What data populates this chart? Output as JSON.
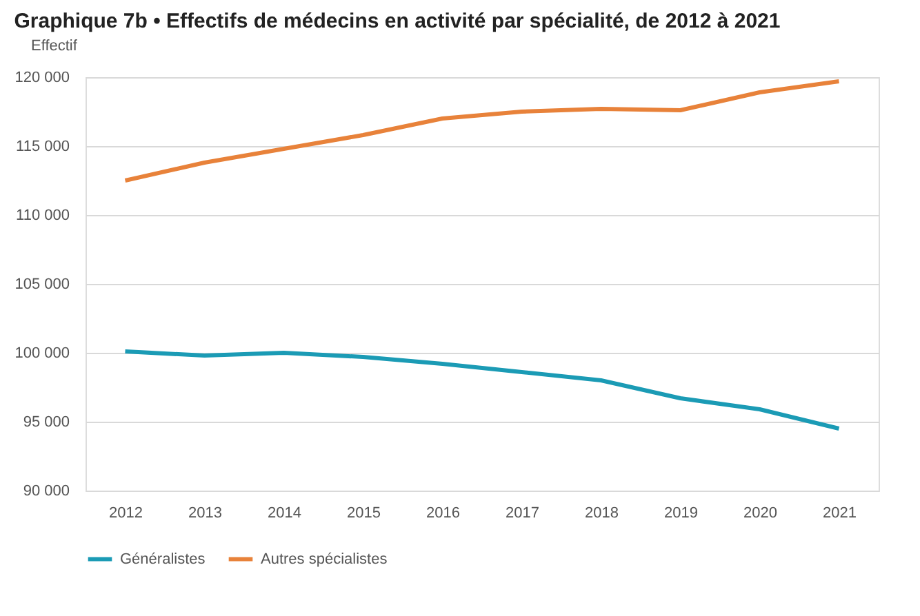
{
  "chart_data": {
    "type": "line",
    "title": "Graphique 7b • Effectifs de médecins en activité par spécialité, de 2012 à 2021",
    "ylabel": "Effectif",
    "categories": [
      "2012",
      "2013",
      "2014",
      "2015",
      "2016",
      "2017",
      "2018",
      "2019",
      "2020",
      "2021"
    ],
    "series": [
      {
        "name": "Généralistes",
        "color": "#1b9bb5",
        "values": [
          100100,
          99800,
          100000,
          99700,
          99200,
          98600,
          98000,
          96700,
          95900,
          94500
        ]
      },
      {
        "name": "Autres spécialistes",
        "color": "#e8823a",
        "values": [
          112500,
          113800,
          114800,
          115800,
          117000,
          117500,
          117700,
          117600,
          118900,
          119700
        ]
      }
    ],
    "ylim": [
      90000,
      120000
    ],
    "yticks": [
      {
        "value": 90000,
        "label": "90 000"
      },
      {
        "value": 95000,
        "label": "95 000"
      },
      {
        "value": 100000,
        "label": "100 000"
      },
      {
        "value": 105000,
        "label": "105 000"
      },
      {
        "value": 110000,
        "label": "110 000"
      },
      {
        "value": 115000,
        "label": "115 000"
      },
      {
        "value": 120000,
        "label": "120 000"
      }
    ],
    "grid": "y",
    "legend": "bottom",
    "marker": "none",
    "line_style": "solid"
  }
}
